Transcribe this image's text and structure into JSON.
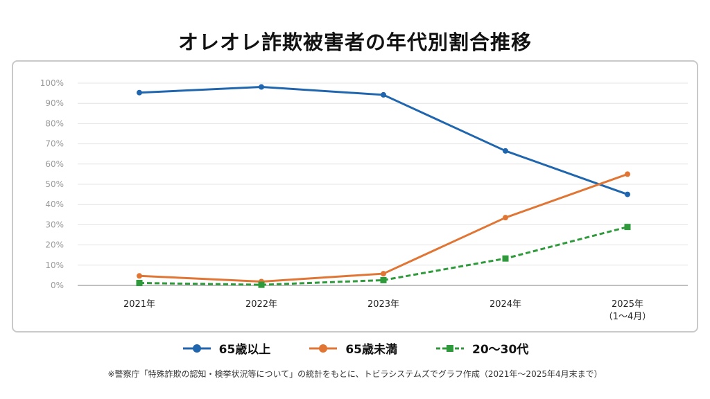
{
  "chart_data": {
    "type": "line",
    "title": "オレオレ詐欺被害者の年代別割合推移",
    "categories": [
      "2021年",
      "2022年",
      "2023年",
      "2024年",
      "2025年"
    ],
    "category_sublabels": [
      "",
      "",
      "",
      "",
      "（1～4月）"
    ],
    "yticks": [
      "0%",
      "10%",
      "20%",
      "30%",
      "40%",
      "50%",
      "60%",
      "70%",
      "80%",
      "90%",
      "100%"
    ],
    "ylim": [
      0,
      100
    ],
    "grid": true,
    "legend_position": "bottom",
    "series": [
      {
        "name": "65歳以上",
        "values": [
          95.3,
          98.1,
          94.2,
          66.5,
          45.0
        ],
        "color": "#1f66ae",
        "style": "solid",
        "marker": "circle"
      },
      {
        "name": "65歳未満",
        "values": [
          4.7,
          1.9,
          5.8,
          33.5,
          55.0
        ],
        "color": "#e07534",
        "style": "solid",
        "marker": "circle"
      },
      {
        "name": "20～30代",
        "values": [
          1.2,
          0.3,
          2.6,
          13.3,
          28.9
        ],
        "color": "#2f9a3b",
        "style": "dashed",
        "marker": "square"
      }
    ]
  },
  "source_note": "※警察庁「特殊詐欺の認知・検挙状況等について」の統計をもとに、トビラシステムズでグラフ作成（2021年～2025年4月末まで）"
}
